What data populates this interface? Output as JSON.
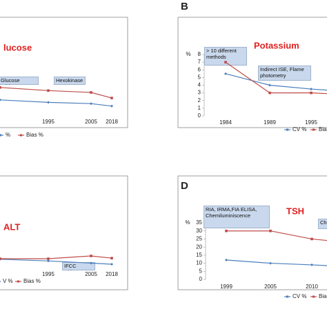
{
  "chart_data": [
    {
      "type": "line",
      "title": "lucose",
      "categories": [
        null,
        "1995",
        "2005",
        "2018"
      ],
      "series": [
        {
          "name": "%",
          "color": "#4a7ebb",
          "values": [
            2.8,
            2.4,
            2.2,
            1.8
          ]
        },
        {
          "name": "Bias %",
          "color": "#be4b48",
          "values": [
            4.8,
            4.3,
            4,
            3.1
          ]
        }
      ],
      "ylim": [
        0,
        10
      ],
      "annotations": [
        "Glucose oxidase",
        "Hexokinase"
      ]
    },
    {
      "type": "line",
      "label": "B",
      "title": "Potassium",
      "ylabel": "%",
      "categories": [
        "1984",
        "1989",
        "1995",
        null
      ],
      "series": [
        {
          "name": "CV %",
          "color": "#4a7ebb",
          "values": [
            5.5,
            4,
            3.5,
            3.2
          ]
        },
        {
          "name": "Bias",
          "color": "#be4b48",
          "values": [
            7,
            3,
            3,
            2.8
          ]
        }
      ],
      "ylim": [
        0,
        8
      ],
      "yticks": [
        0,
        1,
        2,
        3,
        4,
        5,
        6,
        7,
        8
      ],
      "annotations": [
        "> 10 different methods",
        "Indirect ISE, Flame photometry"
      ]
    },
    {
      "type": "line",
      "title": "ALT",
      "categories": [
        null,
        "1995",
        "2005",
        "2018"
      ],
      "series": [
        {
          "name": "V %",
          "color": "#4a7ebb",
          "values": [
            4.9,
            4.6,
            4.2,
            4
          ]
        },
        {
          "name": "Bias %",
          "color": "#be4b48",
          "values": [
            5,
            5,
            5.5,
            5.1
          ]
        }
      ],
      "ylim": [
        0,
        10
      ],
      "annotations": [
        "IFCC without PNP"
      ]
    },
    {
      "type": "line",
      "label": "D",
      "title": "TSH",
      "ylabel": "%",
      "categories": [
        "1999",
        "2005",
        "2010",
        null
      ],
      "series": [
        {
          "name": "CV %",
          "color": "#4a7ebb",
          "values": [
            12,
            10,
            9,
            8
          ]
        },
        {
          "name": "Bias",
          "color": "#be4b48",
          "values": [
            30,
            30,
            25,
            23
          ]
        }
      ],
      "ylim": [
        0,
        35
      ],
      "yticks": [
        0,
        5,
        10,
        15,
        20,
        25,
        30,
        35
      ],
      "annotations": [
        "RIA, IRMA,FIA ELISA, Chemiluminiscence",
        "Che"
      ]
    }
  ]
}
